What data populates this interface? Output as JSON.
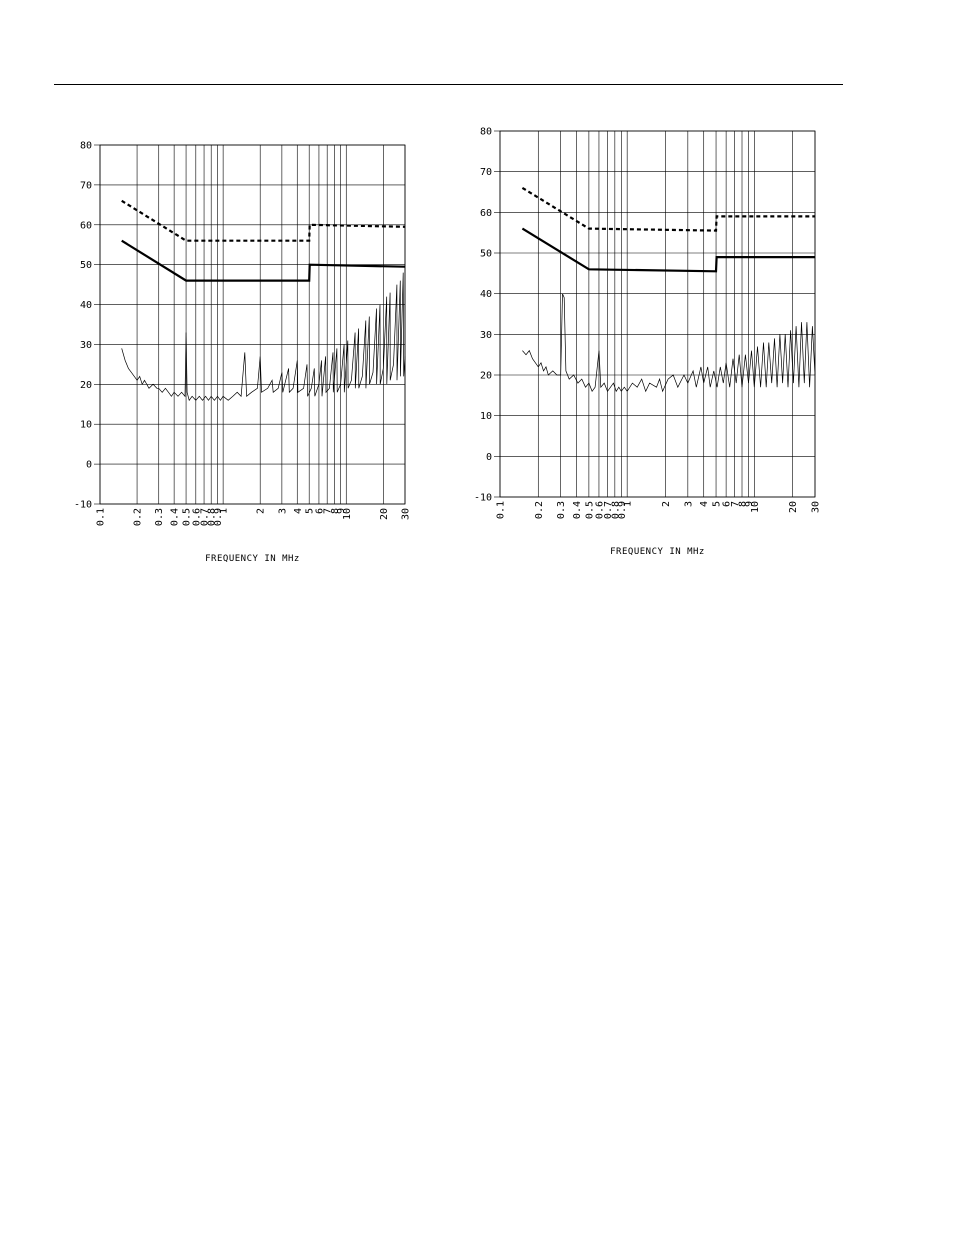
{
  "chart_data": [
    {
      "type": "line",
      "xlabel": "FREQUENCY IN MHz",
      "ylabel": "",
      "x_scale": "log",
      "xlim": [
        0.1,
        30
      ],
      "ylim": [
        -10,
        80
      ],
      "yticks": [
        80,
        70,
        60,
        50,
        40,
        30,
        20,
        10,
        0,
        -10
      ],
      "xtick_labels": [
        {
          "v": 0.1,
          "t": "0.1"
        },
        {
          "v": 0.2,
          "t": "0.2"
        },
        {
          "v": 0.3,
          "t": "0.3"
        },
        {
          "v": 0.4,
          "t": "0.4"
        },
        {
          "v": 0.5,
          "t": "0.5"
        },
        {
          "v": 0.6,
          "t": "0.6"
        },
        {
          "v": 0.7,
          "t": "0.7"
        },
        {
          "v": 0.8,
          "t": "0.8"
        },
        {
          "v": 0.9,
          "t": "0.9"
        },
        {
          "v": 1,
          "t": "1"
        },
        {
          "v": 2,
          "t": "2"
        },
        {
          "v": 3,
          "t": "3"
        },
        {
          "v": 4,
          "t": "4"
        },
        {
          "v": 5,
          "t": "5"
        },
        {
          "v": 6,
          "t": "6"
        },
        {
          "v": 7,
          "t": "7"
        },
        {
          "v": 8,
          "t": "8"
        },
        {
          "v": 9,
          "t": "9"
        },
        {
          "v": 10,
          "t": "10"
        },
        {
          "v": 20,
          "t": "20"
        },
        {
          "v": 30,
          "t": "30"
        }
      ],
      "series": [
        {
          "style": "dashed",
          "points": [
            [
              0.15,
              66
            ],
            [
              0.5,
              56
            ],
            [
              5,
              56
            ],
            [
              5.05,
              60
            ],
            [
              30,
              59.5
            ]
          ]
        },
        {
          "style": "solid",
          "points": [
            [
              0.15,
              56
            ],
            [
              0.5,
              46
            ],
            [
              5,
              46
            ],
            [
              5.05,
              50
            ],
            [
              30,
              49.5
            ]
          ]
        },
        {
          "style": "thin",
          "points": [
            [
              0.15,
              29
            ],
            [
              0.16,
              26
            ],
            [
              0.17,
              24
            ],
            [
              0.18,
              23
            ],
            [
              0.19,
              22
            ],
            [
              0.2,
              21
            ],
            [
              0.21,
              22
            ],
            [
              0.22,
              20
            ],
            [
              0.23,
              21
            ],
            [
              0.25,
              19
            ],
            [
              0.27,
              20
            ],
            [
              0.29,
              19
            ],
            [
              0.3,
              19
            ],
            [
              0.32,
              18
            ],
            [
              0.34,
              19
            ],
            [
              0.36,
              18
            ],
            [
              0.38,
              17
            ],
            [
              0.4,
              18
            ],
            [
              0.43,
              17
            ],
            [
              0.46,
              18
            ],
            [
              0.49,
              17
            ],
            [
              0.5,
              33
            ],
            [
              0.51,
              18
            ],
            [
              0.53,
              16
            ],
            [
              0.56,
              17
            ],
            [
              0.6,
              16
            ],
            [
              0.64,
              17
            ],
            [
              0.68,
              16
            ],
            [
              0.72,
              17
            ],
            [
              0.76,
              16
            ],
            [
              0.8,
              17
            ],
            [
              0.85,
              16
            ],
            [
              0.9,
              17
            ],
            [
              0.95,
              16
            ],
            [
              1.0,
              17
            ],
            [
              1.1,
              16
            ],
            [
              1.2,
              17
            ],
            [
              1.3,
              18
            ],
            [
              1.4,
              17
            ],
            [
              1.5,
              28
            ],
            [
              1.55,
              17
            ],
            [
              1.7,
              18
            ],
            [
              1.9,
              19
            ],
            [
              2.0,
              27
            ],
            [
              2.05,
              18
            ],
            [
              2.3,
              19
            ],
            [
              2.5,
              21
            ],
            [
              2.55,
              18
            ],
            [
              2.8,
              19
            ],
            [
              3.0,
              23
            ],
            [
              3.05,
              18
            ],
            [
              3.4,
              24
            ],
            [
              3.45,
              18
            ],
            [
              3.7,
              19
            ],
            [
              4.0,
              26
            ],
            [
              4.05,
              18
            ],
            [
              4.5,
              19
            ],
            [
              4.8,
              25
            ],
            [
              4.85,
              17
            ],
            [
              5.2,
              19
            ],
            [
              5.5,
              24
            ],
            [
              5.55,
              17
            ],
            [
              6.0,
              20
            ],
            [
              6.3,
              26
            ],
            [
              6.35,
              17
            ],
            [
              6.8,
              27
            ],
            [
              6.85,
              18
            ],
            [
              7.3,
              19
            ],
            [
              7.8,
              28
            ],
            [
              7.85,
              18
            ],
            [
              8.4,
              29
            ],
            [
              8.45,
              18
            ],
            [
              9.0,
              20
            ],
            [
              9.6,
              30
            ],
            [
              9.65,
              18
            ],
            [
              10.3,
              31
            ],
            [
              10.35,
              19
            ],
            [
              11.0,
              21
            ],
            [
              11.8,
              33
            ],
            [
              11.85,
              19
            ],
            [
              12.6,
              34
            ],
            [
              12.65,
              19
            ],
            [
              13.5,
              22
            ],
            [
              14.4,
              36
            ],
            [
              14.45,
              19
            ],
            [
              15.4,
              37
            ],
            [
              15.45,
              20
            ],
            [
              16.5,
              23
            ],
            [
              17.6,
              39
            ],
            [
              17.65,
              20
            ],
            [
              18.8,
              40
            ],
            [
              18.85,
              20
            ],
            [
              20.0,
              24
            ],
            [
              21.3,
              42
            ],
            [
              21.35,
              20
            ],
            [
              22.7,
              43
            ],
            [
              22.75,
              21
            ],
            [
              24.2,
              25
            ],
            [
              25.8,
              45
            ],
            [
              25.85,
              21
            ],
            [
              27.5,
              46
            ],
            [
              27.55,
              22
            ],
            [
              29.0,
              48
            ],
            [
              29.3,
              22
            ],
            [
              30,
              27
            ]
          ]
        }
      ]
    },
    {
      "type": "line",
      "xlabel": "FREQUENCY IN MHz",
      "ylabel": "",
      "x_scale": "log",
      "xlim": [
        0.1,
        30
      ],
      "ylim": [
        -10,
        80
      ],
      "yticks": [
        80,
        70,
        60,
        50,
        40,
        30,
        20,
        10,
        0,
        -10
      ],
      "xtick_labels": [
        {
          "v": 0.1,
          "t": "0.1"
        },
        {
          "v": 0.2,
          "t": "0.2"
        },
        {
          "v": 0.3,
          "t": "0.3"
        },
        {
          "v": 0.4,
          "t": "0.4"
        },
        {
          "v": 0.5,
          "t": "0.5"
        },
        {
          "v": 0.6,
          "t": "0.6"
        },
        {
          "v": 0.7,
          "t": "0.7"
        },
        {
          "v": 0.8,
          "t": "0.8"
        },
        {
          "v": 0.9,
          "t": "0.9"
        },
        {
          "v": 1,
          "t": "1"
        },
        {
          "v": 2,
          "t": "2"
        },
        {
          "v": 3,
          "t": "3"
        },
        {
          "v": 4,
          "t": "4"
        },
        {
          "v": 5,
          "t": "5"
        },
        {
          "v": 6,
          "t": "6"
        },
        {
          "v": 7,
          "t": "7"
        },
        {
          "v": 8,
          "t": "8"
        },
        {
          "v": 9,
          "t": "9"
        },
        {
          "v": 10,
          "t": "10"
        },
        {
          "v": 20,
          "t": "20"
        },
        {
          "v": 30,
          "t": "30"
        }
      ],
      "series": [
        {
          "style": "dashed",
          "points": [
            [
              0.15,
              66
            ],
            [
              0.5,
              56
            ],
            [
              5,
              55.5
            ],
            [
              5.05,
              59
            ],
            [
              30,
              59
            ]
          ]
        },
        {
          "style": "solid",
          "points": [
            [
              0.15,
              56
            ],
            [
              0.5,
              46
            ],
            [
              5,
              45.5
            ],
            [
              5.05,
              49
            ],
            [
              30,
              49
            ]
          ]
        },
        {
          "style": "thin",
          "points": [
            [
              0.15,
              26
            ],
            [
              0.16,
              25
            ],
            [
              0.17,
              26
            ],
            [
              0.18,
              24
            ],
            [
              0.19,
              23
            ],
            [
              0.2,
              22
            ],
            [
              0.21,
              23
            ],
            [
              0.22,
              21
            ],
            [
              0.23,
              22
            ],
            [
              0.24,
              20
            ],
            [
              0.26,
              21
            ],
            [
              0.28,
              20
            ],
            [
              0.3,
              20
            ],
            [
              0.31,
              40
            ],
            [
              0.32,
              39
            ],
            [
              0.33,
              21
            ],
            [
              0.35,
              19
            ],
            [
              0.38,
              20
            ],
            [
              0.41,
              18
            ],
            [
              0.44,
              19
            ],
            [
              0.47,
              17
            ],
            [
              0.5,
              18
            ],
            [
              0.53,
              16
            ],
            [
              0.56,
              17
            ],
            [
              0.6,
              26
            ],
            [
              0.62,
              17
            ],
            [
              0.66,
              18
            ],
            [
              0.7,
              16
            ],
            [
              0.74,
              17
            ],
            [
              0.78,
              18
            ],
            [
              0.82,
              16
            ],
            [
              0.86,
              17
            ],
            [
              0.9,
              16
            ],
            [
              0.95,
              17
            ],
            [
              1.0,
              16
            ],
            [
              1.1,
              18
            ],
            [
              1.2,
              17
            ],
            [
              1.3,
              19
            ],
            [
              1.4,
              16
            ],
            [
              1.5,
              18
            ],
            [
              1.7,
              17
            ],
            [
              1.8,
              19
            ],
            [
              1.9,
              16
            ],
            [
              2.1,
              19
            ],
            [
              2.3,
              20
            ],
            [
              2.5,
              17
            ],
            [
              2.8,
              20
            ],
            [
              3.0,
              18
            ],
            [
              3.3,
              21
            ],
            [
              3.5,
              17
            ],
            [
              3.8,
              22
            ],
            [
              4.0,
              18
            ],
            [
              4.3,
              22
            ],
            [
              4.5,
              17
            ],
            [
              4.8,
              21
            ],
            [
              5.1,
              17
            ],
            [
              5.4,
              22
            ],
            [
              5.7,
              18
            ],
            [
              6.0,
              23
            ],
            [
              6.4,
              17
            ],
            [
              6.8,
              24
            ],
            [
              7.2,
              18
            ],
            [
              7.6,
              25
            ],
            [
              8.0,
              17
            ],
            [
              8.5,
              25
            ],
            [
              9.0,
              18
            ],
            [
              9.5,
              26
            ],
            [
              10.0,
              17
            ],
            [
              10.6,
              27
            ],
            [
              11.2,
              17
            ],
            [
              11.8,
              28
            ],
            [
              12.4,
              17
            ],
            [
              13.0,
              28
            ],
            [
              13.7,
              18
            ],
            [
              14.4,
              29
            ],
            [
              15.1,
              17
            ],
            [
              15.9,
              30
            ],
            [
              16.7,
              18
            ],
            [
              17.5,
              30
            ],
            [
              18.4,
              17
            ],
            [
              19.3,
              31
            ],
            [
              20.3,
              18
            ],
            [
              21.3,
              32
            ],
            [
              22.4,
              17
            ],
            [
              23.5,
              33
            ],
            [
              24.7,
              18
            ],
            [
              25.9,
              33
            ],
            [
              27.2,
              17
            ],
            [
              28.6,
              32
            ],
            [
              30,
              20
            ]
          ]
        }
      ]
    }
  ]
}
